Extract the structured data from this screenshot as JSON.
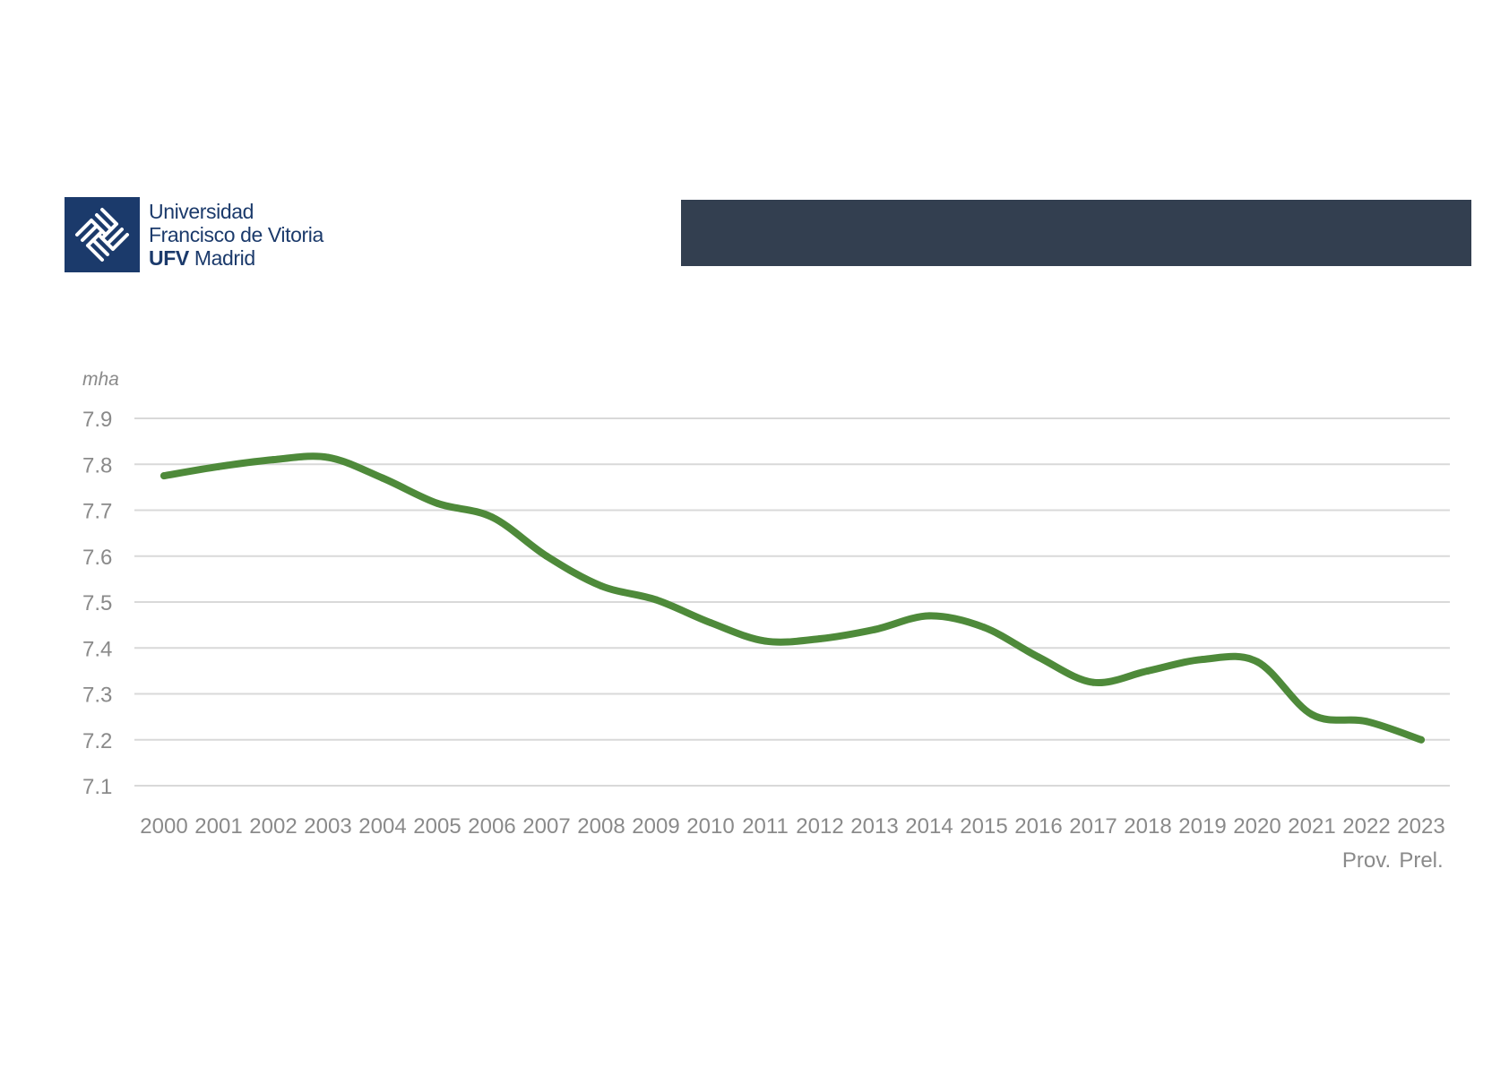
{
  "header": {
    "logo": {
      "line1": "Universidad",
      "line2": "Francisco de Vitoria",
      "line3_bold": "UFV",
      "line3_rest": "Madrid",
      "brand_color": "#1b3a6b"
    },
    "banner_color": "#333f50"
  },
  "chart_data": {
    "type": "line",
    "title": "",
    "xlabel": "",
    "ylabel": "mha",
    "categories": [
      "2000",
      "2001",
      "2002",
      "2003",
      "2004",
      "2005",
      "2006",
      "2007",
      "2008",
      "2009",
      "2010",
      "2011",
      "2012",
      "2013",
      "2014",
      "2015",
      "2016",
      "2017",
      "2018",
      "2019",
      "2020",
      "2021",
      "2022",
      "2023"
    ],
    "category_notes": {
      "2022": "Prov.",
      "2023": "Prel."
    },
    "series": [
      {
        "name": "mha",
        "color": "#4e8a3a",
        "values": [
          7.775,
          7.795,
          7.81,
          7.815,
          7.77,
          7.715,
          7.685,
          7.6,
          7.535,
          7.505,
          7.455,
          7.415,
          7.42,
          7.44,
          7.47,
          7.445,
          7.38,
          7.325,
          7.35,
          7.375,
          7.37,
          7.255,
          7.24,
          7.2
        ]
      }
    ],
    "yticks": [
      "7.1",
      "7.2",
      "7.3",
      "7.4",
      "7.5",
      "7.6",
      "7.7",
      "7.8",
      "7.9"
    ],
    "ylim": [
      7.1,
      7.9
    ],
    "grid": true,
    "grid_color": "#d9d9d9"
  }
}
